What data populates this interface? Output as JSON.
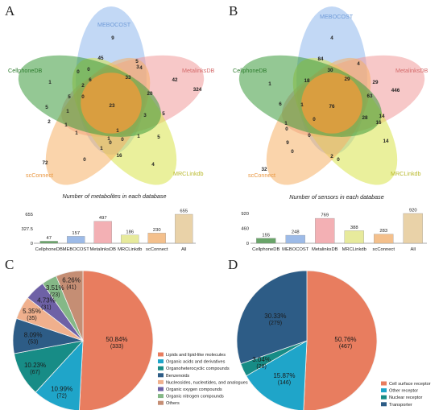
{
  "panel_labels": [
    "A",
    "B",
    "C",
    "D"
  ],
  "colors": {
    "cellphonedb": "#3c9a3c",
    "mebocost": "#8fb8ec",
    "metalinksdb": "#f09a9a",
    "mrclinkdb": "#d8e34a",
    "scconnect": "#f5b066",
    "center": "#f39a3a"
  },
  "chart_data": [
    {
      "type": "venn",
      "panel": "A",
      "sets": [
        "MEBOCOST",
        "MetalinksDB",
        "MRCLinkdb",
        "scConnect",
        "CellphoneDB"
      ],
      "region_labels": [
        "9",
        "45",
        "5",
        "4",
        "42",
        "324",
        "33",
        "20",
        "3",
        "5",
        "5",
        "4",
        "16",
        "1",
        "1",
        "0",
        "72",
        "0",
        "1",
        "1",
        "1",
        "5",
        "1",
        "1",
        "2",
        "5",
        "0",
        "23",
        "1",
        "0",
        "6",
        "0",
        "3",
        "2",
        "0"
      ]
    },
    {
      "type": "venn",
      "panel": "B",
      "sets": [
        "MEBOCOST",
        "MetalinksDB",
        "MRCLinkdb",
        "scConnect",
        "CellphoneDB"
      ],
      "region_labels": [
        "4",
        "84",
        "30",
        "4",
        "29",
        "446",
        "29",
        "63",
        "18",
        "1",
        "28",
        "16",
        "14",
        "14",
        "2",
        "0",
        "32",
        "0",
        "0",
        "1",
        "9",
        "0",
        "6",
        "1",
        "76",
        "0"
      ]
    },
    {
      "type": "bar",
      "panel": "A",
      "title": "Number of metabolites in each database",
      "categories": [
        "CellphoneDB",
        "MEBOCOST",
        "MetalinksDB",
        "MRCLinkdb",
        "scConnect",
        "All"
      ],
      "values": [
        47,
        157,
        497,
        186,
        230,
        655
      ],
      "ytick_labels": [
        "0",
        "327.5",
        "655"
      ],
      "ylim": [
        0,
        655
      ]
    },
    {
      "type": "bar",
      "panel": "B",
      "title": "Number of sensors in each database",
      "categories": [
        "CellphoneDB",
        "MEBOCOST",
        "MetalinksDB",
        "MRCLinkdb",
        "scConnect",
        "All"
      ],
      "values": [
        155,
        248,
        769,
        388,
        283,
        920
      ],
      "ytick_labels": [
        "0",
        "460",
        "920"
      ],
      "ylim": [
        0,
        920
      ]
    },
    {
      "type": "pie",
      "panel": "C",
      "slices": [
        {
          "label": "Lipids and lipid-like molecules",
          "percent": "50.84%",
          "count": "(333)",
          "value": 50.84,
          "color": "#e87d5f"
        },
        {
          "label": "Organic acids and derivatives",
          "percent": "10.99%",
          "count": "(72)",
          "value": 10.99,
          "color": "#1fa5c9"
        },
        {
          "label": "Organoheterocyclic compounds",
          "percent": "10.23%",
          "count": "(67)",
          "value": 10.23,
          "color": "#178c86"
        },
        {
          "label": "Benzenoids",
          "percent": "8.09%",
          "count": "(53)",
          "value": 8.09,
          "color": "#2d5c86"
        },
        {
          "label": "Nucleosides, nucleotides, and analogues",
          "percent": "5.35%",
          "count": "(35)",
          "value": 5.35,
          "color": "#f0b08d"
        },
        {
          "label": "Organic oxygen compounds",
          "percent": "4.73%",
          "count": "(31)",
          "value": 4.73,
          "color": "#6e61a6"
        },
        {
          "label": "Organic nitrogen compounds",
          "percent": "3.51%",
          "count": "(23)",
          "value": 3.51,
          "color": "#85b887"
        },
        {
          "label": "Others",
          "percent": "6.26%",
          "count": "(41)",
          "value": 6.26,
          "color": "#c58e74"
        }
      ]
    },
    {
      "type": "pie",
      "panel": "D",
      "slices": [
        {
          "label": "Cell surface receptor",
          "percent": "50.76%",
          "count": "(467)",
          "value": 50.76,
          "color": "#e87d5f"
        },
        {
          "label": "Other receptor",
          "percent": "15.87%",
          "count": "(146)",
          "value": 15.87,
          "color": "#1fa5c9"
        },
        {
          "label": "Nuclear receptor",
          "percent": "3.04%",
          "count": "(28)",
          "value": 3.04,
          "color": "#178c86"
        },
        {
          "label": "Transporter",
          "percent": "30.33%",
          "count": "(279)",
          "value": 30.33,
          "color": "#2d5c86"
        }
      ]
    }
  ]
}
